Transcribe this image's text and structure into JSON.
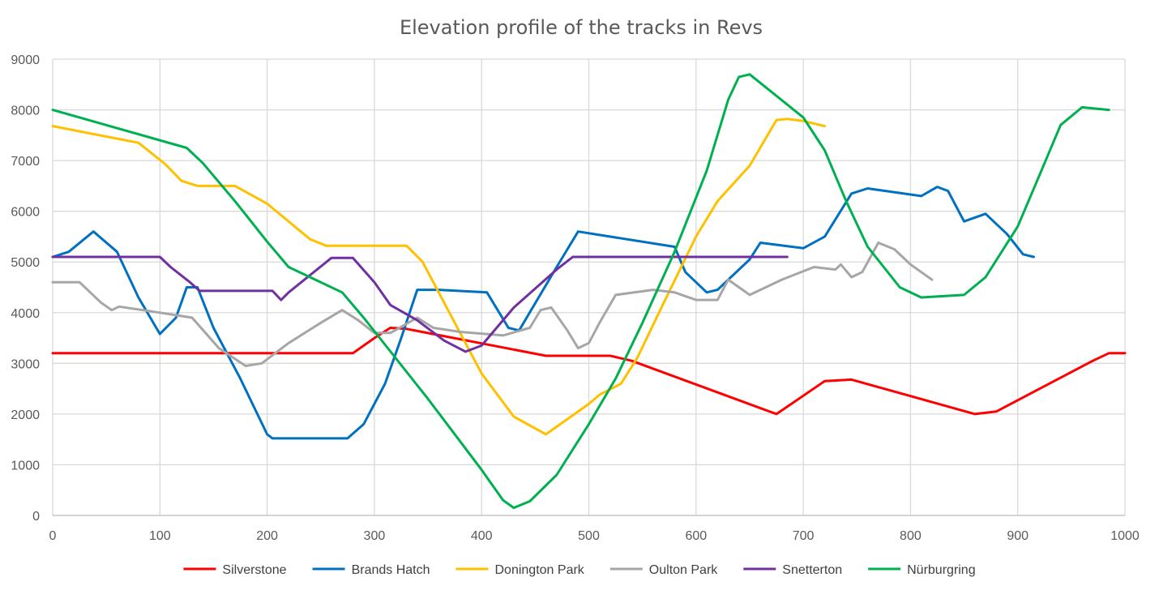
{
  "chart_data": {
    "type": "line",
    "title": "Elevation profile of the tracks in Revs",
    "xlabel": "",
    "ylabel": "",
    "xlim": [
      0,
      1000
    ],
    "ylim": [
      0,
      9000
    ],
    "xticks": [
      0,
      100,
      200,
      300,
      400,
      500,
      600,
      700,
      800,
      900,
      1000
    ],
    "yticks": [
      0,
      1000,
      2000,
      3000,
      4000,
      5000,
      6000,
      7000,
      8000,
      9000
    ],
    "grid": "vertical and horizontal",
    "legend_position": "bottom",
    "series": [
      {
        "name": "Silverstone",
        "color": "#ff0000",
        "points": [
          [
            0,
            3200
          ],
          [
            280,
            3200
          ],
          [
            300,
            3500
          ],
          [
            315,
            3700
          ],
          [
            330,
            3680
          ],
          [
            460,
            3150
          ],
          [
            520,
            3150
          ],
          [
            540,
            3050
          ],
          [
            675,
            2000
          ],
          [
            720,
            2650
          ],
          [
            745,
            2680
          ],
          [
            860,
            2000
          ],
          [
            880,
            2050
          ],
          [
            970,
            3050
          ],
          [
            985,
            3200
          ],
          [
            1000,
            3200
          ]
        ]
      },
      {
        "name": "Brands Hatch",
        "color": "#0070c0",
        "points": [
          [
            0,
            5100
          ],
          [
            15,
            5200
          ],
          [
            38,
            5600
          ],
          [
            60,
            5200
          ],
          [
            80,
            4300
          ],
          [
            100,
            3580
          ],
          [
            115,
            3900
          ],
          [
            125,
            4500
          ],
          [
            135,
            4500
          ],
          [
            150,
            3700
          ],
          [
            175,
            2700
          ],
          [
            200,
            1600
          ],
          [
            205,
            1520
          ],
          [
            275,
            1520
          ],
          [
            290,
            1800
          ],
          [
            310,
            2600
          ],
          [
            325,
            3500
          ],
          [
            340,
            4450
          ],
          [
            360,
            4450
          ],
          [
            405,
            4400
          ],
          [
            425,
            3700
          ],
          [
            435,
            3650
          ],
          [
            470,
            4900
          ],
          [
            490,
            5600
          ],
          [
            580,
            5300
          ],
          [
            590,
            4800
          ],
          [
            610,
            4400
          ],
          [
            620,
            4450
          ],
          [
            650,
            5050
          ],
          [
            660,
            5380
          ],
          [
            700,
            5270
          ],
          [
            720,
            5500
          ],
          [
            745,
            6350
          ],
          [
            760,
            6450
          ],
          [
            810,
            6300
          ],
          [
            825,
            6480
          ],
          [
            835,
            6400
          ],
          [
            850,
            5800
          ],
          [
            870,
            5950
          ],
          [
            890,
            5550
          ],
          [
            905,
            5150
          ],
          [
            915,
            5100
          ]
        ]
      },
      {
        "name": "Donington Park",
        "color": "#ffc000",
        "points": [
          [
            0,
            7680
          ],
          [
            80,
            7350
          ],
          [
            105,
            6930
          ],
          [
            120,
            6600
          ],
          [
            135,
            6500
          ],
          [
            170,
            6500
          ],
          [
            200,
            6150
          ],
          [
            240,
            5450
          ],
          [
            255,
            5320
          ],
          [
            330,
            5320
          ],
          [
            345,
            5000
          ],
          [
            380,
            3600
          ],
          [
            400,
            2800
          ],
          [
            430,
            1950
          ],
          [
            460,
            1600
          ],
          [
            500,
            2200
          ],
          [
            510,
            2380
          ],
          [
            530,
            2600
          ],
          [
            545,
            3100
          ],
          [
            570,
            4200
          ],
          [
            600,
            5500
          ],
          [
            620,
            6200
          ],
          [
            650,
            6900
          ],
          [
            675,
            7800
          ],
          [
            685,
            7820
          ],
          [
            700,
            7780
          ],
          [
            720,
            7680
          ]
        ]
      },
      {
        "name": "Oulton Park",
        "color": "#a6a6a6",
        "points": [
          [
            0,
            4600
          ],
          [
            25,
            4600
          ],
          [
            45,
            4200
          ],
          [
            55,
            4050
          ],
          [
            62,
            4120
          ],
          [
            100,
            4000
          ],
          [
            115,
            3950
          ],
          [
            130,
            3900
          ],
          [
            155,
            3300
          ],
          [
            180,
            2950
          ],
          [
            195,
            3000
          ],
          [
            220,
            3400
          ],
          [
            250,
            3800
          ],
          [
            270,
            4050
          ],
          [
            285,
            3850
          ],
          [
            300,
            3600
          ],
          [
            315,
            3600
          ],
          [
            340,
            3900
          ],
          [
            355,
            3700
          ],
          [
            380,
            3620
          ],
          [
            420,
            3550
          ],
          [
            445,
            3700
          ],
          [
            455,
            4050
          ],
          [
            465,
            4100
          ],
          [
            480,
            3650
          ],
          [
            490,
            3300
          ],
          [
            500,
            3400
          ],
          [
            510,
            3800
          ],
          [
            525,
            4350
          ],
          [
            560,
            4450
          ],
          [
            580,
            4400
          ],
          [
            600,
            4250
          ],
          [
            620,
            4250
          ],
          [
            630,
            4650
          ],
          [
            650,
            4350
          ],
          [
            680,
            4650
          ],
          [
            710,
            4900
          ],
          [
            730,
            4850
          ],
          [
            735,
            4950
          ],
          [
            745,
            4700
          ],
          [
            755,
            4800
          ],
          [
            770,
            5380
          ],
          [
            785,
            5250
          ],
          [
            800,
            4950
          ],
          [
            820,
            4650
          ]
        ]
      },
      {
        "name": "Snetterton",
        "color": "#7030a0",
        "points": [
          [
            0,
            5100
          ],
          [
            100,
            5100
          ],
          [
            110,
            4900
          ],
          [
            128,
            4600
          ],
          [
            137,
            4430
          ],
          [
            205,
            4430
          ],
          [
            213,
            4250
          ],
          [
            220,
            4400
          ],
          [
            260,
            5080
          ],
          [
            280,
            5080
          ],
          [
            300,
            4600
          ],
          [
            315,
            4150
          ],
          [
            340,
            3850
          ],
          [
            365,
            3450
          ],
          [
            385,
            3230
          ],
          [
            400,
            3350
          ],
          [
            430,
            4100
          ],
          [
            470,
            4850
          ],
          [
            485,
            5100
          ],
          [
            685,
            5100
          ]
        ]
      },
      {
        "name": "Nürburgring",
        "color": "#00b050",
        "points": [
          [
            0,
            8000
          ],
          [
            125,
            7250
          ],
          [
            140,
            6950
          ],
          [
            170,
            6200
          ],
          [
            200,
            5400
          ],
          [
            220,
            4900
          ],
          [
            270,
            4400
          ],
          [
            290,
            3900
          ],
          [
            350,
            2300
          ],
          [
            400,
            900
          ],
          [
            420,
            300
          ],
          [
            430,
            150
          ],
          [
            445,
            280
          ],
          [
            470,
            800
          ],
          [
            500,
            1800
          ],
          [
            525,
            2700
          ],
          [
            550,
            3800
          ],
          [
            580,
            5200
          ],
          [
            610,
            6800
          ],
          [
            630,
            8200
          ],
          [
            640,
            8650
          ],
          [
            650,
            8700
          ],
          [
            700,
            7850
          ],
          [
            720,
            7200
          ],
          [
            740,
            6200
          ],
          [
            760,
            5300
          ],
          [
            790,
            4500
          ],
          [
            810,
            4300
          ],
          [
            850,
            4350
          ],
          [
            870,
            4700
          ],
          [
            900,
            5700
          ],
          [
            920,
            6700
          ],
          [
            940,
            7700
          ],
          [
            960,
            8050
          ],
          [
            985,
            8000
          ]
        ]
      }
    ]
  }
}
